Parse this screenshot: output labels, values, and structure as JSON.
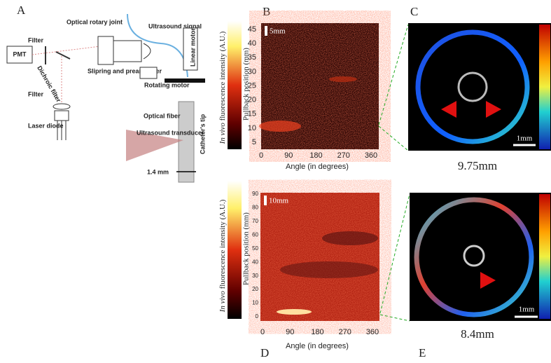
{
  "panel_a": {
    "label": "A",
    "filter_top": "Filter",
    "pmt": "PMT",
    "dichroic": "Dichroic filter",
    "rotary_joint": "Optical rotary joint",
    "ultrasound_signal": "Ultrasound signal",
    "slipring": "Slipring and preamplifier",
    "rotating_motor": "Rotating motor",
    "linear_motor": "Linear motor",
    "filter_bottom": "Filter",
    "laser": "Laser diode",
    "optical_fiber": "Optical fiber",
    "transducer": "Ultrasound transducer",
    "catheter_tip": "Catheter's tip",
    "width": "1.4 mm"
  },
  "panel_b": {
    "label": "B",
    "scale_label": "5mm",
    "colorbar_label_italic": "In vivo",
    "colorbar_label": " fluorescence intensity (A.U.)",
    "y_axis_label": "Pullback position (mm)",
    "x_axis_label": "Angle (in degrees)",
    "yticks": [
      5,
      10,
      15,
      20,
      25,
      30,
      35,
      40,
      45
    ],
    "xticks": [
      0,
      90,
      180,
      270,
      360
    ]
  },
  "panel_c": {
    "label": "C",
    "scale_label": "1mm",
    "caption": "9.75mm"
  },
  "panel_d": {
    "label": "D",
    "scale_label": "10mm",
    "colorbar_label_italic": "In vivo",
    "colorbar_label": " fluorescence intensity (A.U.)",
    "y_axis_label": "Pullback position (mm)",
    "x_axis_label": "Angle (in degrees)",
    "yticks": [
      0,
      10,
      20,
      30,
      40,
      50,
      60,
      70,
      80,
      90
    ],
    "xticks": [
      0,
      90,
      180,
      270,
      360
    ]
  },
  "panel_e": {
    "label": "E",
    "scale_label": "1mm",
    "caption": "8.4mm"
  }
}
